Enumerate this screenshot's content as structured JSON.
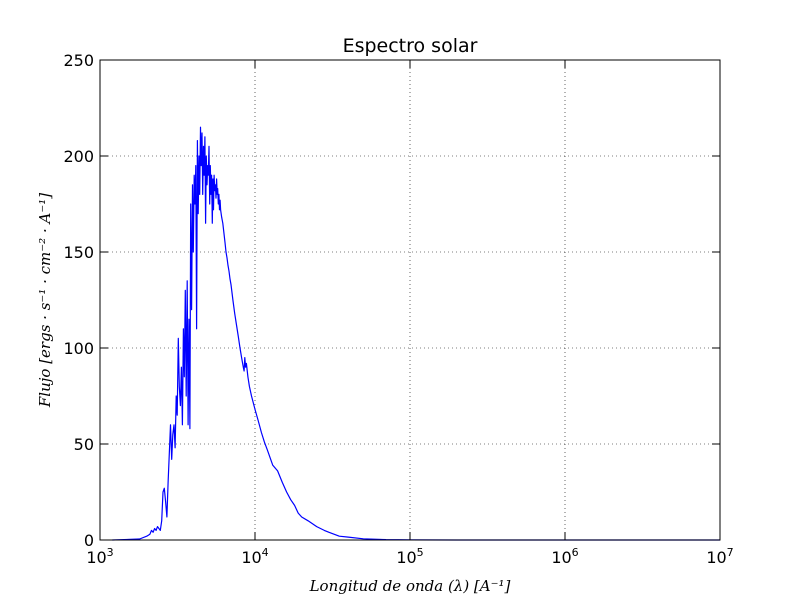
{
  "chart_data": {
    "type": "line",
    "title": "Espectro solar",
    "xlabel": "Longitud  de  onda  (λ)  [A⁻¹]",
    "ylabel": "Flujo  [ergs · s⁻¹ · cm⁻² · A⁻¹]",
    "xscale": "log",
    "xlim": [
      1000,
      10000000
    ],
    "ylim": [
      0,
      250
    ],
    "grid": true,
    "x_ticks": [
      {
        "value": 1000,
        "base": "10",
        "exp": "3"
      },
      {
        "value": 10000,
        "base": "10",
        "exp": "4"
      },
      {
        "value": 100000,
        "base": "10",
        "exp": "5"
      },
      {
        "value": 1000000,
        "base": "10",
        "exp": "6"
      },
      {
        "value": 10000000,
        "base": "10",
        "exp": "7"
      }
    ],
    "y_ticks": [
      0,
      50,
      100,
      150,
      200,
      250
    ],
    "series": [
      {
        "color": "#0000ff",
        "x": [
          1200,
          1800,
          2000,
          2100,
          2150,
          2200,
          2250,
          2300,
          2350,
          2400,
          2450,
          2500,
          2550,
          2600,
          2650,
          2700,
          2750,
          2800,
          2850,
          2900,
          2950,
          3000,
          3050,
          3100,
          3150,
          3200,
          3250,
          3300,
          3350,
          3400,
          3450,
          3500,
          3550,
          3600,
          3650,
          3700,
          3750,
          3800,
          3850,
          3900,
          3950,
          4000,
          4050,
          4100,
          4150,
          4200,
          4250,
          4300,
          4350,
          4400,
          4450,
          4500,
          4550,
          4600,
          4650,
          4700,
          4750,
          4800,
          4850,
          4900,
          4950,
          5000,
          5050,
          5100,
          5150,
          5200,
          5250,
          5300,
          5350,
          5400,
          5450,
          5500,
          5550,
          5600,
          5650,
          5700,
          5750,
          5800,
          5850,
          5900,
          5950,
          6000,
          6100,
          6200,
          6300,
          6400,
          6500,
          6600,
          6700,
          6800,
          6900,
          7000,
          7200,
          7400,
          7600,
          7800,
          8000,
          8200,
          8400,
          8500,
          8600,
          8700,
          8800,
          9000,
          9200,
          9500,
          10000,
          10500,
          11000,
          11500,
          12000,
          12500,
          13000,
          14000,
          15000,
          16000,
          17000,
          18000,
          19000,
          20000,
          22000,
          25000,
          28000,
          30000,
          35000,
          40000,
          50000,
          70000,
          100000,
          200000,
          1000000,
          10000000
        ],
        "y": [
          0,
          0.5,
          2,
          3,
          5,
          4,
          6,
          5,
          7,
          6,
          5,
          10,
          25,
          27,
          20,
          12,
          30,
          45,
          60,
          42,
          55,
          60,
          48,
          75,
          65,
          105,
          80,
          70,
          90,
          60,
          110,
          85,
          130,
          75,
          135,
          60,
          115,
          58,
          175,
          120,
          185,
          150,
          190,
          175,
          195,
          110,
          208,
          170,
          200,
          180,
          215,
          195,
          212,
          180,
          205,
          190,
          210,
          165,
          200,
          185,
          195,
          190,
          205,
          175,
          195,
          180,
          190,
          165,
          188,
          172,
          190,
          182,
          185,
          178,
          188,
          180,
          183,
          175,
          180,
          172,
          177,
          172,
          168,
          165,
          160,
          155,
          150,
          147,
          143,
          140,
          136,
          133,
          125,
          118,
          112,
          106,
          100,
          95,
          90,
          88,
          95,
          90,
          92,
          85,
          80,
          75,
          68,
          62,
          56,
          51,
          47,
          43,
          39,
          36,
          30,
          25,
          21,
          18,
          14,
          12,
          10,
          7,
          5,
          4,
          2,
          1.5,
          0.6,
          0.2,
          0.05,
          0,
          0,
          0
        ]
      }
    ]
  }
}
